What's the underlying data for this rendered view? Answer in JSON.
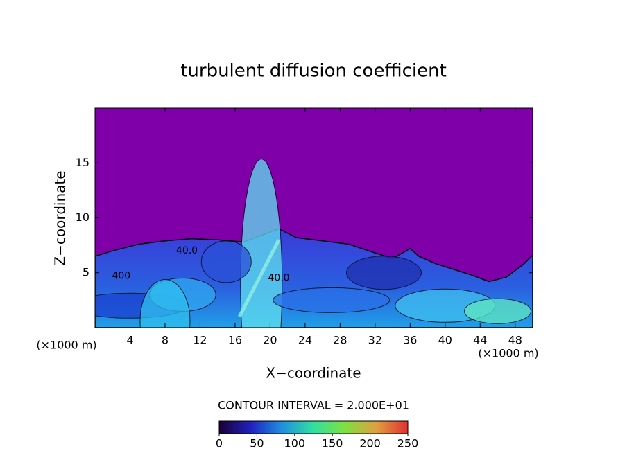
{
  "chart_data": {
    "type": "contour",
    "title": "turbulent diffusion coefficient",
    "x_label": "X−coordinate",
    "y_label": "Z−coordinate",
    "x_unit_label": "(×1000 m)",
    "y_unit_label": "(×1000 m)",
    "xlim": [
      0,
      50
    ],
    "xticks": [
      4,
      8,
      12,
      16,
      20,
      24,
      28,
      32,
      36,
      40,
      44,
      48
    ],
    "ylim": [
      0,
      20
    ],
    "yticks": [
      5,
      10,
      15
    ],
    "contour_labels": [
      "40.0",
      "40.0",
      "400"
    ],
    "contour_interval_label": "CONTOUR INTERVAL = 2.000E+01",
    "colorbar": {
      "lim": [
        0,
        250
      ],
      "ticks": [
        0,
        50,
        100,
        150,
        200,
        250
      ],
      "colors": [
        "#1a0033",
        "#2020c0",
        "#2090e0",
        "#30e0a0",
        "#80e040",
        "#e0a040",
        "#e03030"
      ]
    }
  }
}
